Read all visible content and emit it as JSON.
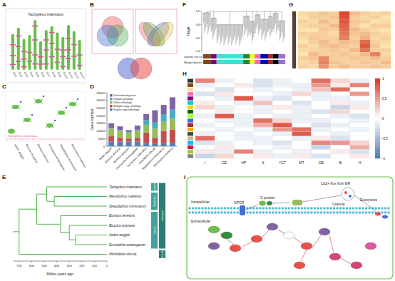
{
  "panel_labels": [
    "A",
    "B",
    "C",
    "D",
    "E",
    "F",
    "G",
    "H",
    "I"
  ],
  "panel_a": {
    "title": "Tachypleus tridentatus",
    "chromosomes": [
      {
        "label": "Chr1",
        "length": 72,
        "genes": [
          15,
          40,
          70
        ]
      },
      {
        "label": "Chr2",
        "length": 85,
        "genes": [
          20,
          55,
          80
        ]
      },
      {
        "label": "Chr3",
        "length": 62,
        "genes": [
          10,
          35,
          60
        ]
      },
      {
        "label": "Chr4",
        "length": 70,
        "genes": [
          25,
          50
        ]
      },
      {
        "label": "Chr5",
        "length": 100,
        "genes": [
          12,
          30,
          60,
          88
        ]
      },
      {
        "label": "Chr6",
        "length": 58,
        "genes": [
          20,
          45
        ]
      },
      {
        "label": "Chr7",
        "length": 80,
        "genes": [
          15,
          50,
          75
        ]
      },
      {
        "label": "Chr8",
        "length": 88,
        "genes": [
          30,
          60,
          85
        ]
      },
      {
        "label": "Chr9",
        "length": 75,
        "genes": [
          20,
          55
        ]
      },
      {
        "label": "Chr10",
        "length": 66,
        "genes": [
          10,
          40,
          60
        ]
      },
      {
        "label": "Chr11",
        "length": 90,
        "genes": [
          25,
          45,
          70
        ]
      },
      {
        "label": "Chr12",
        "length": 78,
        "genes": [
          35,
          65
        ]
      },
      {
        "label": "Chr13",
        "length": 60,
        "genes": [
          15,
          50
        ]
      }
    ]
  },
  "panel_b": {
    "venn_sets": [
      3,
      4,
      2
    ]
  },
  "panel_c": {
    "species": [
      "Aedes aegypti",
      "Bicyclus anynana",
      "Bombus terrestris",
      "Drosophila melanogaster",
      "Stegodyphus mimosarum",
      "Mesobuthus martensii"
    ],
    "highlight": "Tachypleus tridentatus"
  },
  "chart_data": [
    {
      "type": "bar",
      "stacked": true,
      "ylabel": "Gene number",
      "legend": "top-left",
      "categories": [
        "Aedes aegypti",
        "Bicyclus anynana",
        "Bombus terrestris",
        "Drosophila melanogaster",
        "Tachypleus tridentatus",
        "Helobdella robusta",
        "Stegodyphus mimosarum",
        "Mesobuthus martensii"
      ],
      "series": [
        {
          "name": "Single copy orthologs",
          "color": "#4f81bd",
          "values": [
            3000,
            3000,
            3000,
            3000,
            2000,
            1500,
            2000,
            2000
          ]
        },
        {
          "name": "Multiple copy orthologs",
          "color": "#c0504d",
          "values": [
            3500,
            2500,
            2000,
            2500,
            7000,
            4000,
            8000,
            9000
          ]
        },
        {
          "name": "Other orthologs",
          "color": "#9bbb59",
          "values": [
            5000,
            4500,
            4000,
            4500,
            5000,
            6000,
            6000,
            7000
          ]
        },
        {
          "name": "Unique paralogs",
          "color": "#4bacc6",
          "values": [
            500,
            500,
            300,
            800,
            3000,
            4000,
            5000,
            6000
          ]
        },
        {
          "name": "Unclustered genes",
          "color": "#8064a2",
          "values": [
            3000,
            2500,
            1200,
            2700,
            4000,
            8000,
            6000,
            8000
          ]
        }
      ],
      "ylim": [
        0,
        35000
      ],
      "yticks": [
        0,
        5000,
        10000,
        15000,
        20000,
        25000,
        30000,
        35000
      ]
    },
    {
      "type": "heatmap",
      "color_range": [
        0,
        1
      ],
      "cells": [
        [
          0.15,
          0.2,
          0.25,
          0.2,
          0.9,
          0.3,
          0.2,
          0.15,
          0.2
        ],
        [
          0.1,
          0.2,
          0.2,
          0.25,
          0.85,
          0.2,
          0.15,
          0.2,
          0.1
        ],
        [
          0.2,
          0.15,
          0.3,
          0.2,
          0.8,
          0.25,
          0.2,
          0.1,
          0.15
        ],
        [
          0.15,
          0.2,
          0.2,
          0.3,
          0.75,
          0.2,
          0.1,
          0.2,
          0.2
        ],
        [
          0.1,
          0.1,
          0.25,
          0.2,
          0.7,
          0.3,
          0.2,
          0.15,
          0.1
        ],
        [
          0.2,
          0.2,
          0.2,
          0.15,
          0.65,
          0.25,
          0.3,
          0.2,
          0.15
        ],
        [
          0.15,
          0.25,
          0.2,
          0.2,
          0.6,
          0.2,
          0.35,
          0.15,
          0.2
        ],
        [
          0.1,
          0.2,
          0.3,
          0.2,
          0.3,
          0.25,
          0.7,
          0.2,
          0.15
        ],
        [
          0.2,
          0.15,
          0.25,
          0.3,
          0.25,
          0.2,
          0.8,
          0.25,
          0.1
        ],
        [
          0.15,
          0.2,
          0.2,
          0.25,
          0.2,
          0.3,
          0.65,
          0.2,
          0.2
        ],
        [
          0.1,
          0.3,
          0.2,
          0.2,
          0.25,
          0.2,
          0.3,
          0.6,
          0.15
        ],
        [
          0.2,
          0.25,
          0.55,
          0.2,
          0.2,
          0.25,
          0.2,
          0.3,
          0.2
        ],
        [
          0.15,
          0.2,
          0.6,
          0.25,
          0.2,
          0.2,
          0.25,
          0.2,
          0.3
        ],
        [
          0.2,
          0.15,
          0.5,
          0.2,
          0.3,
          0.2,
          0.2,
          0.25,
          0.2
        ]
      ]
    },
    {
      "type": "heatmap",
      "categories": [
        "I",
        "CE",
        "HP",
        "S",
        "YCT",
        "MT",
        "GB",
        "B",
        "H"
      ],
      "row_colors": [
        "#333333",
        "#8b4513",
        "#f5deb3",
        "#ff69b4",
        "#800080",
        "#00ced1",
        "#ffd700",
        "#006400",
        "#adff2f",
        "#4169e1",
        "#a52a2a",
        "#ffa500",
        "#2f4f4f",
        "#d2b48c",
        "#00bfff",
        "#dc143c",
        "#9acd32",
        "#808080"
      ],
      "color_range": [
        -1,
        1
      ],
      "colorbar_ticks": [
        -1,
        -0.5,
        0,
        0.5,
        1
      ],
      "cells": [
        [
          0.6,
          -0.1,
          0,
          -0.2,
          -0.1,
          0,
          0.7,
          0.2,
          -0.1
        ],
        [
          -0.1,
          0,
          0.1,
          -0.2,
          -0.1,
          -0.1,
          0.5,
          0.1,
          0.6
        ],
        [
          0,
          -0.2,
          0,
          -0.1,
          0,
          -0.1,
          0.3,
          0.7,
          0
        ],
        [
          -0.2,
          0.1,
          0,
          0,
          -0.1,
          0.2,
          -0.1,
          0,
          0.5
        ],
        [
          0,
          -0.1,
          0.8,
          -0.1,
          -0.2,
          0,
          -0.1,
          -0.1,
          0
        ],
        [
          0.1,
          0,
          -0.1,
          0.3,
          0,
          -0.2,
          0,
          0.1,
          -0.1
        ],
        [
          0.2,
          -0.1,
          0,
          -0.1,
          0.1,
          -0.1,
          0,
          -0.3,
          0.1
        ],
        [
          0,
          0.1,
          0,
          -0.1,
          0,
          -0.1,
          -0.2,
          0.2,
          0
        ],
        [
          -0.1,
          0.8,
          -0.1,
          0,
          -0.1,
          -0.1,
          0,
          -0.1,
          -0.2
        ],
        [
          0,
          -0.1,
          -0.1,
          0.7,
          0.2,
          -0.1,
          -0.1,
          0,
          -0.1
        ],
        [
          -0.1,
          0,
          -0.1,
          0.4,
          0.8,
          0,
          -0.2,
          -0.1,
          0
        ],
        [
          0,
          -0.1,
          0,
          -0.1,
          0.5,
          0.7,
          -0.1,
          0,
          -0.1
        ],
        [
          -0.1,
          0,
          -0.1,
          0,
          -0.1,
          0.8,
          0,
          -0.1,
          0
        ],
        [
          0.7,
          0,
          -0.1,
          -0.1,
          0,
          -0.1,
          0.1,
          -0.2,
          0
        ],
        [
          -0.2,
          -0.1,
          0,
          -0.1,
          -0.2,
          0,
          0.6,
          0.5,
          0.2
        ],
        [
          0,
          0.1,
          0,
          0,
          -0.1,
          0,
          -0.3,
          0,
          0.4
        ],
        [
          0.1,
          -0.1,
          0.6,
          -0.1,
          0,
          -0.1,
          0,
          0.1,
          -0.2
        ],
        [
          -0.3,
          0.2,
          0,
          0.1,
          -0.1,
          0.1,
          -0.2,
          0,
          0.1
        ]
      ]
    }
  ],
  "panel_e": {
    "xlabel": "Million years ago",
    "xlim": [
      750,
      0
    ],
    "xticks": [
      700,
      600,
      500,
      400,
      300,
      200,
      100,
      0
    ],
    "tree": {
      "age": 700,
      "children": [
        {
          "age": 560,
          "children": [
            {
              "age": 480,
              "children": [
                "Tachypleus tridentatus",
                {
                  "age": 420,
                  "children": [
                    "Mesobuthus martensii",
                    "Stegodyphus mimosarum"
                  ]
                }
              ]
            },
            {
              "age": 370,
              "children": [
                "Bombus terrestris",
                {
                  "age": 300,
                  "children": [
                    "Bicyclus anynana",
                    {
                      "age": 250,
                      "children": [
                        "Aedes aegypti",
                        "Drosophila melanogaster"
                      ]
                    }
                  ]
                }
              ]
            }
          ]
        },
        "Helobdella robusta"
      ]
    },
    "groups": [
      {
        "label": "Merostomata",
        "size": 1
      },
      {
        "label": "Arachnida",
        "size": 2
      },
      {
        "label": "Insecta",
        "size": 4
      }
    ],
    "outer_groups": [
      {
        "label": "Arthropod",
        "size": 7
      },
      {
        "label": "Annelida",
        "size": 1
      }
    ]
  },
  "panel_f": {
    "ylabel": "Height",
    "ylim": [
      0.4,
      1.0
    ],
    "yticks": [
      0.4,
      0.6,
      0.8,
      {
        "value": 1,
        "label": "1.0"
      }
    ],
    "track_labels": [
      "Dynamic tree cut",
      "Merged dynamic"
    ],
    "modules": [
      {
        "color": "#8b4513",
        "size": 8,
        "height": 0.98
      },
      {
        "color": "#800080",
        "size": 6,
        "height": 0.9
      },
      {
        "color": "#40e0d0",
        "size": 28,
        "height": 0.8
      },
      {
        "color": "#228b22",
        "size": 7,
        "height": 0.93
      },
      {
        "color": "#ffff00",
        "size": 5,
        "height": 0.85
      },
      {
        "color": "#ff69b4",
        "size": 6,
        "height": 0.95
      },
      {
        "color": "#0000cd",
        "size": 8,
        "height": 0.88
      },
      {
        "color": "#a52a2a",
        "size": 5,
        "height": 0.92
      },
      {
        "color": "#000000",
        "size": 6,
        "height": 0.97
      },
      {
        "color": "#9370db",
        "size": 7,
        "height": 0.86
      }
    ]
  },
  "panel_i": {
    "labels": [
      "Intracellular",
      "Extracellular",
      "GPCR",
      "G protein",
      "Ca2+ flux from ER",
      "Granule",
      "Exocytosis"
    ]
  }
}
